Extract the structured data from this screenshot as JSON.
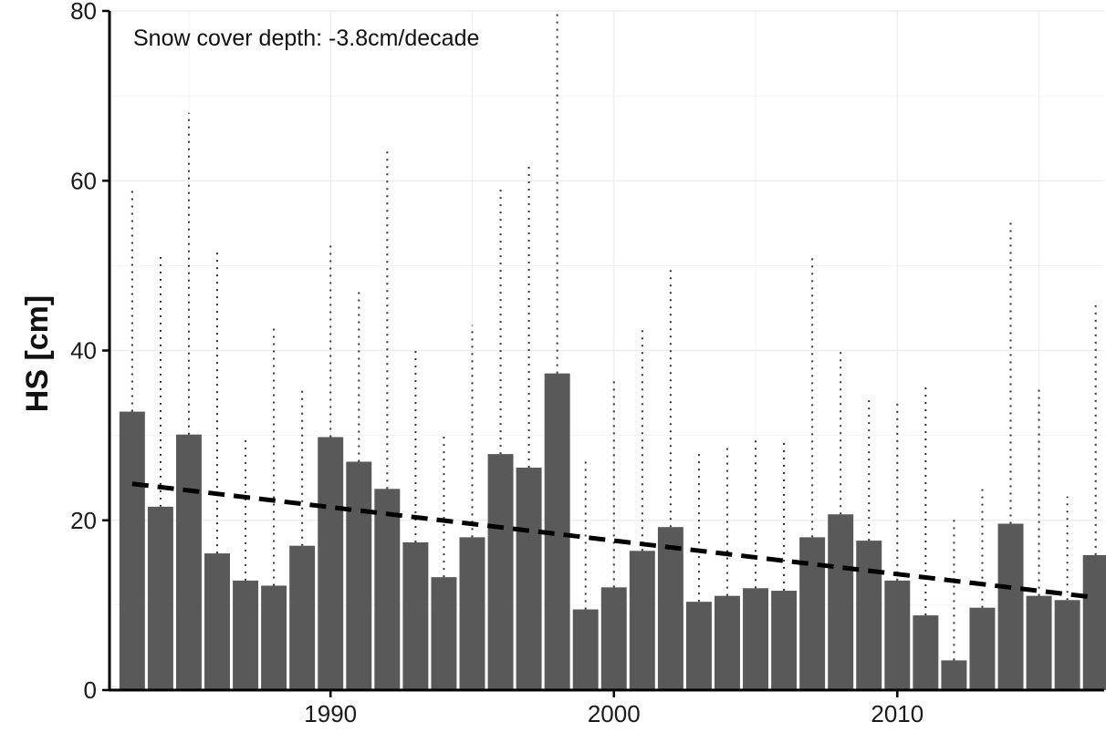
{
  "chart_data": {
    "type": "bar",
    "annotation": "Snow cover depth: -3.8cm/decade",
    "xlabel": "",
    "ylabel": "HS [cm]",
    "xlim": [
      1982.2,
      2017.3
    ],
    "ylim": [
      0,
      80
    ],
    "x_ticks": [
      1990,
      2000,
      2010
    ],
    "y_ticks": [
      0,
      20,
      40,
      60,
      80
    ],
    "grid": true,
    "legend": "none",
    "colors": {
      "bar": "#595959",
      "whisker": "#333333",
      "trend": "#000000",
      "grid": "#ebebeb",
      "axis": "#000000"
    },
    "years": [
      1983,
      1984,
      1985,
      1986,
      1987,
      1988,
      1989,
      1990,
      1991,
      1992,
      1993,
      1994,
      1995,
      1996,
      1997,
      1998,
      1999,
      2000,
      2001,
      2002,
      2003,
      2004,
      2005,
      2006,
      2007,
      2008,
      2009,
      2010,
      2011,
      2012,
      2013,
      2014,
      2015,
      2016,
      2017
    ],
    "series": [
      {
        "values": [
          32.8,
          21.6,
          30.1,
          16.1,
          12.9,
          12.3,
          17.0,
          29.8,
          26.9,
          23.7,
          17.4,
          13.3,
          18.0,
          27.8,
          26.2,
          37.3,
          9.5,
          12.1,
          16.4,
          19.2,
          10.4,
          11.1,
          12.0,
          11.7,
          18.0,
          20.7,
          17.6,
          12.9,
          8.8,
          3.5,
          9.7,
          19.6,
          11.1,
          10.6,
          15.9
        ]
      },
      {
        "values": [
          59.2,
          51.3,
          68.0,
          51.9,
          29.8,
          43.0,
          35.9,
          52.6,
          47.2,
          64.0,
          40.2,
          30.0,
          43.0,
          59.0,
          62.0,
          80.0,
          27.5,
          37.0,
          42.6,
          49.8,
          28.2,
          28.9,
          30.0,
          29.7,
          51.4,
          39.9,
          34.6,
          34.3,
          36.3,
          20.2,
          24.0,
          55.3,
          36.0,
          22.8,
          45.6
        ]
      }
    ],
    "trend": {
      "start": [
        1983,
        24.3
      ],
      "end": [
        2017,
        10.9
      ]
    }
  }
}
